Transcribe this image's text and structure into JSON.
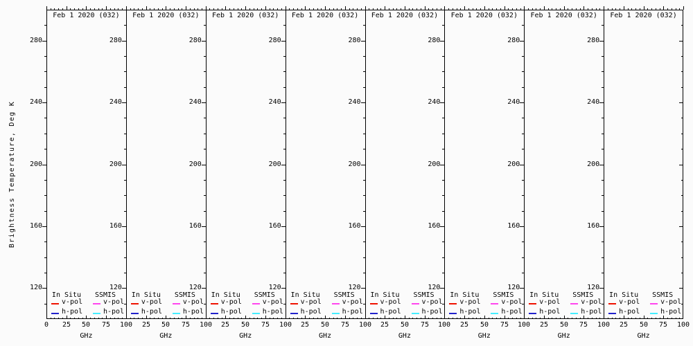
{
  "figure": {
    "ylabel": "Brightness Temperature, Deg K",
    "xlabel": "GHz",
    "background": "#fbfbfb",
    "axis_color": "#000000",
    "text_color": "#000000",
    "panel_count": 8
  },
  "chart_data": {
    "type": "line",
    "n_panels": 8,
    "panel_titles": [
      "Feb 1 2020 (032)",
      "Feb 1 2020 (032)",
      "Feb 1 2020 (032)",
      "Feb 1 2020 (032)",
      "Feb 1 2020 (032)",
      "Feb 1 2020 (032)",
      "Feb 1 2020 (032)",
      "Feb 1 2020 (032)"
    ],
    "xlabel": "GHz",
    "ylabel": "Brightness Temperature, Deg K",
    "xlim": [
      0,
      100
    ],
    "ylim": [
      100,
      300
    ],
    "xticks": [
      0,
      25,
      50,
      75,
      100
    ],
    "xtick_labels": [
      "0",
      "25",
      "50",
      "75",
      "100"
    ],
    "xtick_minor_step": 5,
    "yticks": [
      120,
      160,
      200,
      240,
      280
    ],
    "ytick_labels": [
      "120",
      "160",
      "200",
      "240",
      "280"
    ],
    "ytick_minor_step": 10,
    "grid": false,
    "legend_position": "bottom-inside",
    "series": [
      {
        "group": "In Situ",
        "name": "v-pol",
        "color": "#ee1100",
        "x": [],
        "y": []
      },
      {
        "group": "In Situ",
        "name": "h-pol",
        "color": "#2222cc",
        "x": [],
        "y": []
      },
      {
        "group": "SSMIS",
        "name": "v-pol",
        "color": "#ff44ee",
        "x": [],
        "y": []
      },
      {
        "group": "SSMIS",
        "name": "h-pol",
        "color": "#44eeff",
        "x": [],
        "y": []
      }
    ],
    "data_note": "All 8 panels are empty: no curves are plotted, only frame, ticks and legend are drawn."
  },
  "legend": {
    "groups": [
      {
        "header": "In Situ",
        "entries": [
          {
            "label": "v-pol",
            "color": "#ee1100"
          },
          {
            "label": "h-pol",
            "color": "#2222cc"
          }
        ]
      },
      {
        "header": "SSMIS",
        "entries": [
          {
            "label": "v-pol",
            "color": "#ff44ee"
          },
          {
            "label": "h-pol",
            "color": "#44eeff"
          }
        ]
      }
    ]
  }
}
